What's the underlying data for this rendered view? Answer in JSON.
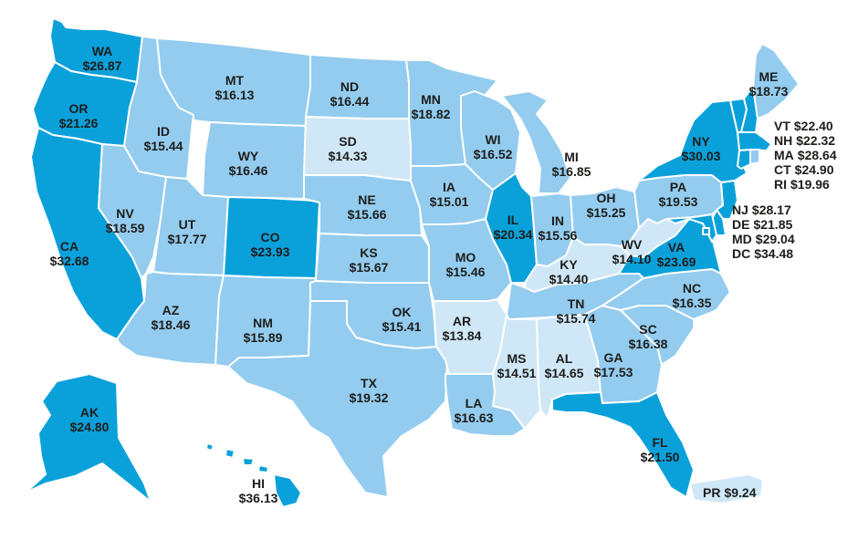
{
  "colors": {
    "low": "#cfe7f6",
    "mid": "#93ccef",
    "high": "#0aa1db",
    "text": "#1d1d1b"
  },
  "states": {
    "WA": {
      "abbr": "WA",
      "value": "$26.87",
      "tier": "high"
    },
    "OR": {
      "abbr": "OR",
      "value": "$21.26",
      "tier": "high"
    },
    "CA": {
      "abbr": "CA",
      "value": "$32.68",
      "tier": "high"
    },
    "ID": {
      "abbr": "ID",
      "value": "$15.44",
      "tier": "mid"
    },
    "NV": {
      "abbr": "NV",
      "value": "$18.59",
      "tier": "mid"
    },
    "MT": {
      "abbr": "MT",
      "value": "$16.13",
      "tier": "mid"
    },
    "WY": {
      "abbr": "WY",
      "value": "$16.46",
      "tier": "mid"
    },
    "UT": {
      "abbr": "UT",
      "value": "$17.77",
      "tier": "mid"
    },
    "CO": {
      "abbr": "CO",
      "value": "$23.93",
      "tier": "high"
    },
    "AZ": {
      "abbr": "AZ",
      "value": "$18.46",
      "tier": "mid"
    },
    "NM": {
      "abbr": "NM",
      "value": "$15.89",
      "tier": "mid"
    },
    "ND": {
      "abbr": "ND",
      "value": "$16.44",
      "tier": "mid"
    },
    "SD": {
      "abbr": "SD",
      "value": "$14.33",
      "tier": "low"
    },
    "NE": {
      "abbr": "NE",
      "value": "$15.66",
      "tier": "mid"
    },
    "KS": {
      "abbr": "KS",
      "value": "$15.67",
      "tier": "mid"
    },
    "OK": {
      "abbr": "OK",
      "value": "$15.41",
      "tier": "mid"
    },
    "TX": {
      "abbr": "TX",
      "value": "$19.32",
      "tier": "mid"
    },
    "MN": {
      "abbr": "MN",
      "value": "$18.82",
      "tier": "mid"
    },
    "IA": {
      "abbr": "IA",
      "value": "$15.01",
      "tier": "mid"
    },
    "MO": {
      "abbr": "MO",
      "value": "$15.46",
      "tier": "mid"
    },
    "AR": {
      "abbr": "AR",
      "value": "$13.84",
      "tier": "low"
    },
    "LA": {
      "abbr": "LA",
      "value": "$16.63",
      "tier": "mid"
    },
    "WI": {
      "abbr": "WI",
      "value": "$16.52",
      "tier": "mid"
    },
    "IL": {
      "abbr": "IL",
      "value": "$20.34",
      "tier": "high"
    },
    "MI": {
      "abbr": "MI",
      "value": "$16.85",
      "tier": "mid"
    },
    "IN": {
      "abbr": "IN",
      "value": "$15.56",
      "tier": "mid"
    },
    "OH": {
      "abbr": "OH",
      "value": "$15.25",
      "tier": "mid"
    },
    "KY": {
      "abbr": "KY",
      "value": "$14.40",
      "tier": "low"
    },
    "TN": {
      "abbr": "TN",
      "value": "$15.74",
      "tier": "mid"
    },
    "MS": {
      "abbr": "MS",
      "value": "$14.51",
      "tier": "low"
    },
    "AL": {
      "abbr": "AL",
      "value": "$14.65",
      "tier": "low"
    },
    "GA": {
      "abbr": "GA",
      "value": "$17.53",
      "tier": "mid"
    },
    "FL": {
      "abbr": "FL",
      "value": "$21.50",
      "tier": "high"
    },
    "SC": {
      "abbr": "SC",
      "value": "$16.38",
      "tier": "mid"
    },
    "NC": {
      "abbr": "NC",
      "value": "$16.35",
      "tier": "mid"
    },
    "VA": {
      "abbr": "VA",
      "value": "$23.69",
      "tier": "high"
    },
    "WV": {
      "abbr": "WV",
      "value": "$14.10",
      "tier": "low"
    },
    "PA": {
      "abbr": "PA",
      "value": "$19.53",
      "tier": "mid"
    },
    "NY": {
      "abbr": "NY",
      "value": "$30.03",
      "tier": "high"
    },
    "ME": {
      "abbr": "ME",
      "value": "$18.73",
      "tier": "mid"
    },
    "VT": {
      "abbr": "VT",
      "value": "$22.40",
      "tier": "high"
    },
    "NH": {
      "abbr": "NH",
      "value": "$22.32",
      "tier": "high"
    },
    "MA": {
      "abbr": "MA",
      "value": "$28.64",
      "tier": "high"
    },
    "CT": {
      "abbr": "CT",
      "value": "$24.90",
      "tier": "high"
    },
    "RI": {
      "abbr": "RI",
      "value": "$19.96",
      "tier": "mid"
    },
    "NJ": {
      "abbr": "NJ",
      "value": "$28.17",
      "tier": "high"
    },
    "DE": {
      "abbr": "DE",
      "value": "$21.85",
      "tier": "high"
    },
    "MD": {
      "abbr": "MD",
      "value": "$29.04",
      "tier": "high"
    },
    "DC": {
      "abbr": "DC",
      "value": "$34.48",
      "tier": "high"
    },
    "AK": {
      "abbr": "AK",
      "value": "$24.80",
      "tier": "high"
    },
    "HI": {
      "abbr": "HI",
      "value": "$36.13",
      "tier": "high"
    },
    "PR": {
      "abbr": "PR",
      "value": "$9.24",
      "tier": "low"
    }
  }
}
